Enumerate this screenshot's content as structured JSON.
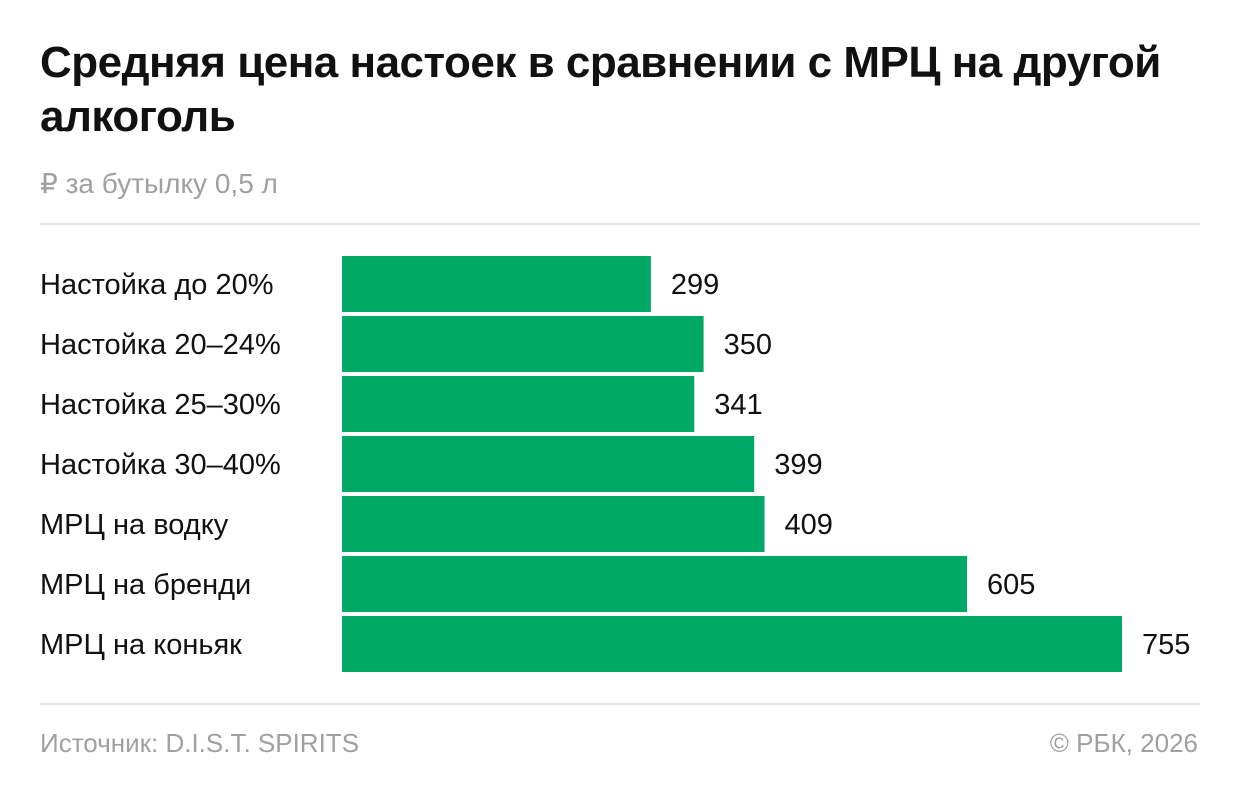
{
  "header": {
    "title": "Средняя цена настоек в сравнении с МРЦ на другой алкоголь",
    "subtitle": "₽ за бутылку 0,5 л"
  },
  "footer": {
    "source": "Источник: D.I.S.T. SPIRITS",
    "copyright": "© РБК, 2026"
  },
  "colors": {
    "bar": "#00a865"
  },
  "chart_data": {
    "type": "bar",
    "orientation": "horizontal",
    "title": "Средняя цена настоек в сравнении с МРЦ на другой алкоголь",
    "subtitle": "₽ за бутылку 0,5 л",
    "categories": [
      "Настойка до 20%",
      "Настойка 20–24%",
      "Настойка 25–30%",
      "Настойка 30–40%",
      "МРЦ на водку",
      "МРЦ на бренди",
      "МРЦ на коньяк"
    ],
    "values": [
      299,
      350,
      341,
      399,
      409,
      605,
      755
    ],
    "xlim": [
      0,
      755
    ],
    "grid": false,
    "data_labels": true
  }
}
